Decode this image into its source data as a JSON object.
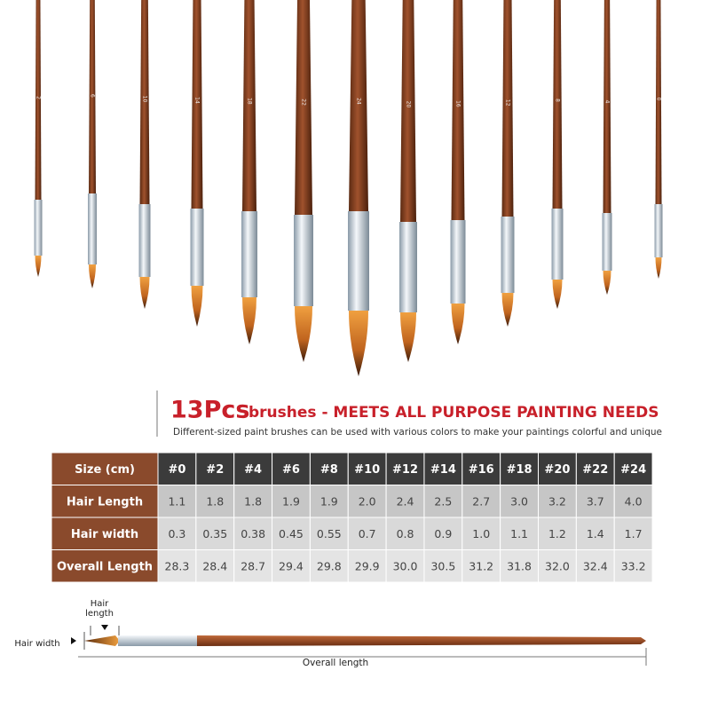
{
  "brush_labels": [
    "2",
    "6",
    "10",
    "14",
    "18",
    "22",
    "24",
    "20",
    "16",
    "12",
    "8",
    "4",
    "0"
  ],
  "header": {
    "title_number": "13Pcs",
    "title_rest": "brushes - MEETS ALL PURPOSE PAINTING NEEDS",
    "subtitle": "Different-sized paint brushes can be used with various colors to make your paintings colorful and unique"
  },
  "table": {
    "columns": [
      "Size (cm)",
      "#0",
      "#2",
      "#4",
      "#6",
      "#8",
      "#10",
      "#12",
      "#14",
      "#16",
      "#18",
      "#20",
      "#22",
      "#24"
    ],
    "rows": [
      [
        "Hair Length",
        "1.1",
        "1.8",
        "1.8",
        "1.9",
        "1.9",
        "2.0",
        "2.4",
        "2.5",
        "2.7",
        "3.0",
        "3.2",
        "3.7",
        "4.0"
      ],
      [
        "Hair width",
        "0.3",
        "0.35",
        "0.38",
        "0.45",
        "0.55",
        "0.7",
        "0.8",
        "0.9",
        "1.0",
        "1.1",
        "1.2",
        "1.4",
        "1.7"
      ],
      [
        "Overall Length",
        "28.3",
        "28.4",
        "28.7",
        "29.4",
        "29.8",
        "29.9",
        "30.0",
        "30.5",
        "31.2",
        "31.8",
        "32.0",
        "32.4",
        "33.2"
      ]
    ]
  },
  "diagram": {
    "hair_length": "Hair\nlength",
    "hair_width": "Hair width",
    "overall_length": "Overall length"
  }
}
